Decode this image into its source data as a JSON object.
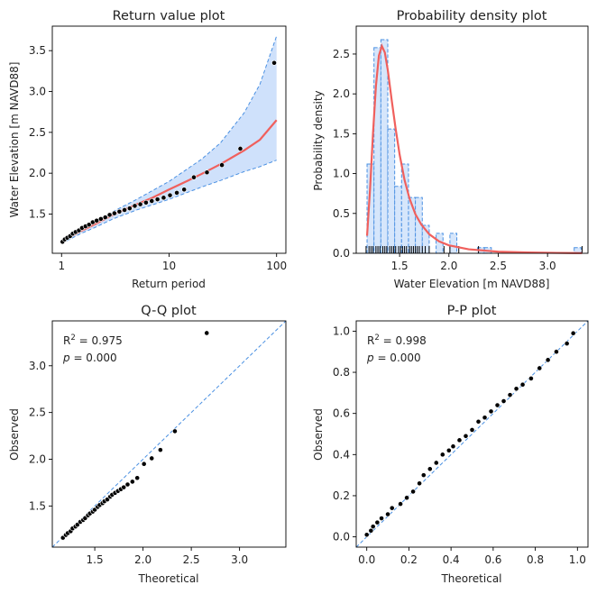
{
  "colors": {
    "band_fill": "#cfe1fb",
    "band_edge": "#4a90e2",
    "fit_line": "#f0605d",
    "points": "#000000",
    "hist_fill": "#d6e6fb",
    "hist_edge": "#4a90e2"
  },
  "chart_data": [
    {
      "type": "line",
      "title": "Return value plot",
      "xlabel": "Return period",
      "ylabel": "Water Elevation [m NAVD88]",
      "xscale": "log",
      "xlim": [
        0.82,
        122
      ],
      "ylim": [
        1.02,
        3.8
      ],
      "xticks": [
        1,
        10,
        100
      ],
      "xtick_labels": [
        "1",
        "10",
        "100"
      ],
      "yticks": [
        1.5,
        2.0,
        2.5,
        3.0,
        3.5
      ],
      "ytick_labels": [
        "1.5",
        "2.0",
        "2.5",
        "3.0",
        "3.5"
      ],
      "series": [
        {
          "name": "fit",
          "x": [
            1,
            1.2,
            1.5,
            2,
            3,
            5,
            7,
            10,
            15,
            20,
            30,
            50,
            70,
            100
          ],
          "y": [
            1.16,
            1.22,
            1.29,
            1.37,
            1.49,
            1.62,
            1.7,
            1.8,
            1.91,
            1.99,
            2.11,
            2.28,
            2.41,
            2.65
          ]
        },
        {
          "name": "ci_upper",
          "x": [
            1,
            1.5,
            2,
            3,
            5,
            10,
            20,
            30,
            50,
            70,
            100
          ],
          "y": [
            1.17,
            1.31,
            1.4,
            1.53,
            1.68,
            1.9,
            2.17,
            2.37,
            2.74,
            3.09,
            3.68
          ]
        },
        {
          "name": "ci_lower",
          "x": [
            1,
            1.5,
            2,
            3,
            5,
            10,
            20,
            30,
            50,
            70,
            100
          ],
          "y": [
            1.14,
            1.26,
            1.33,
            1.44,
            1.55,
            1.68,
            1.83,
            1.91,
            2.02,
            2.08,
            2.16
          ]
        },
        {
          "name": "observations",
          "x": [
            1.02,
            1.07,
            1.13,
            1.2,
            1.27,
            1.35,
            1.45,
            1.55,
            1.67,
            1.8,
            1.95,
            2.12,
            2.32,
            2.55,
            2.8,
            3.1,
            3.45,
            3.85,
            4.3,
            4.8,
            5.4,
            6.1,
            6.9,
            7.8,
            8.9,
            10.2,
            11.8,
            13.8,
            17.0,
            22.5,
            31.0,
            46.0,
            95.0
          ],
          "y": [
            1.16,
            1.19,
            1.21,
            1.23,
            1.26,
            1.28,
            1.3,
            1.33,
            1.35,
            1.37,
            1.4,
            1.42,
            1.44,
            1.46,
            1.49,
            1.51,
            1.53,
            1.55,
            1.57,
            1.6,
            1.62,
            1.64,
            1.66,
            1.68,
            1.7,
            1.73,
            1.76,
            1.8,
            1.95,
            2.01,
            2.1,
            2.3,
            3.35
          ]
        }
      ]
    },
    {
      "type": "bar",
      "title": "Probability density plot",
      "xlabel": "Water Elevation [m NAVD88]",
      "ylabel": "Probability density",
      "xlim": [
        1.06,
        3.41
      ],
      "ylim": [
        0,
        2.85
      ],
      "xticks": [
        1.5,
        2.0,
        2.5,
        3.0
      ],
      "xtick_labels": [
        "1.5",
        "2.0",
        "2.5",
        "3.0"
      ],
      "yticks": [
        0.0,
        0.5,
        1.0,
        1.5,
        2.0,
        2.5
      ],
      "ytick_labels": [
        "0.0",
        "0.5",
        "1.0",
        "1.5",
        "2.0",
        "2.5"
      ],
      "bin_edges": [
        1.17,
        1.24,
        1.31,
        1.38,
        1.45,
        1.52,
        1.59,
        1.66,
        1.73,
        1.8,
        1.87,
        1.94,
        2.01,
        2.08,
        2.15,
        2.22,
        2.29,
        2.36,
        2.43,
        2.5,
        2.57,
        2.64,
        2.71,
        2.78,
        2.85,
        2.92,
        2.99,
        3.06,
        3.13,
        3.2,
        3.27,
        3.34
      ],
      "values": [
        1.12,
        2.58,
        2.68,
        1.56,
        0.84,
        1.12,
        0.7,
        0.7,
        0.35,
        0.0,
        0.25,
        0.0,
        0.25,
        0.0,
        0.0,
        0.0,
        0.07,
        0.07,
        0.0,
        0.0,
        0.0,
        0.0,
        0.0,
        0.0,
        0.0,
        0.0,
        0.0,
        0.0,
        0.0,
        0.0,
        0.07
      ],
      "series": [
        {
          "name": "pdf_fit",
          "x": [
            1.17,
            1.2,
            1.23,
            1.26,
            1.29,
            1.32,
            1.35,
            1.38,
            1.42,
            1.46,
            1.5,
            1.55,
            1.6,
            1.66,
            1.72,
            1.8,
            1.9,
            2.0,
            2.2,
            2.5,
            2.8,
            3.1,
            3.35
          ],
          "y": [
            0.22,
            0.8,
            1.5,
            2.1,
            2.48,
            2.6,
            2.52,
            2.3,
            1.92,
            1.56,
            1.24,
            0.92,
            0.69,
            0.49,
            0.36,
            0.24,
            0.15,
            0.1,
            0.05,
            0.02,
            0.01,
            0.005,
            0.002
          ]
        }
      ],
      "rug": [
        1.16,
        1.19,
        1.21,
        1.23,
        1.26,
        1.28,
        1.3,
        1.33,
        1.35,
        1.37,
        1.4,
        1.42,
        1.44,
        1.46,
        1.49,
        1.51,
        1.53,
        1.55,
        1.57,
        1.6,
        1.62,
        1.64,
        1.66,
        1.68,
        1.7,
        1.73,
        1.76,
        1.8,
        1.95,
        2.01,
        2.1,
        2.3,
        3.35
      ]
    },
    {
      "type": "scatter",
      "title": "Q-Q plot",
      "xlabel": "Theoretical",
      "ylabel": "Observed",
      "xlim": [
        1.06,
        3.48
      ],
      "ylim": [
        1.06,
        3.48
      ],
      "xticks": [
        1.5,
        2.0,
        2.5,
        3.0
      ],
      "xtick_labels": [
        "1.5",
        "2.0",
        "2.5",
        "3.0"
      ],
      "yticks": [
        1.5,
        2.0,
        2.5,
        3.0
      ],
      "ytick_labels": [
        "1.5",
        "2.0",
        "2.5",
        "3.0"
      ],
      "annotation": {
        "r2": "R² = 0.975",
        "p": "p = 0.000"
      },
      "x": [
        1.17,
        1.2,
        1.22,
        1.25,
        1.27,
        1.3,
        1.32,
        1.35,
        1.38,
        1.4,
        1.43,
        1.45,
        1.48,
        1.5,
        1.53,
        1.55,
        1.58,
        1.6,
        1.63,
        1.66,
        1.68,
        1.71,
        1.74,
        1.77,
        1.8,
        1.84,
        1.89,
        1.94,
        2.01,
        2.09,
        2.18,
        2.33,
        2.66
      ],
      "y": [
        1.16,
        1.19,
        1.21,
        1.23,
        1.26,
        1.28,
        1.3,
        1.33,
        1.35,
        1.37,
        1.4,
        1.42,
        1.44,
        1.46,
        1.49,
        1.51,
        1.53,
        1.55,
        1.57,
        1.6,
        1.62,
        1.64,
        1.66,
        1.68,
        1.7,
        1.73,
        1.76,
        1.8,
        1.95,
        2.01,
        2.1,
        2.3,
        3.35
      ]
    },
    {
      "type": "scatter",
      "title": "P-P plot",
      "xlabel": "Theoretical",
      "ylabel": "Observed",
      "xlim": [
        -0.05,
        1.05
      ],
      "ylim": [
        -0.05,
        1.05
      ],
      "xticks": [
        0.0,
        0.2,
        0.4,
        0.6,
        0.8,
        1.0
      ],
      "xtick_labels": [
        "0.0",
        "0.2",
        "0.4",
        "0.6",
        "0.8",
        "1.0"
      ],
      "yticks": [
        0.0,
        0.2,
        0.4,
        0.6,
        0.8,
        1.0
      ],
      "ytick_labels": [
        "0.0",
        "0.2",
        "0.4",
        "0.6",
        "0.8",
        "1.0"
      ],
      "annotation": {
        "r2": "R² = 0.998",
        "p": "p = 0.000"
      },
      "x": [
        0.0,
        0.02,
        0.03,
        0.05,
        0.07,
        0.1,
        0.12,
        0.16,
        0.19,
        0.22,
        0.25,
        0.27,
        0.3,
        0.33,
        0.36,
        0.39,
        0.41,
        0.44,
        0.47,
        0.5,
        0.53,
        0.56,
        0.59,
        0.62,
        0.65,
        0.68,
        0.71,
        0.74,
        0.78,
        0.82,
        0.86,
        0.9,
        0.95,
        0.98
      ],
      "y": [
        0.01,
        0.03,
        0.05,
        0.07,
        0.09,
        0.11,
        0.14,
        0.16,
        0.19,
        0.22,
        0.26,
        0.3,
        0.33,
        0.36,
        0.4,
        0.42,
        0.44,
        0.47,
        0.49,
        0.52,
        0.56,
        0.58,
        0.61,
        0.64,
        0.66,
        0.69,
        0.72,
        0.74,
        0.77,
        0.82,
        0.86,
        0.9,
        0.94,
        0.99
      ]
    }
  ]
}
